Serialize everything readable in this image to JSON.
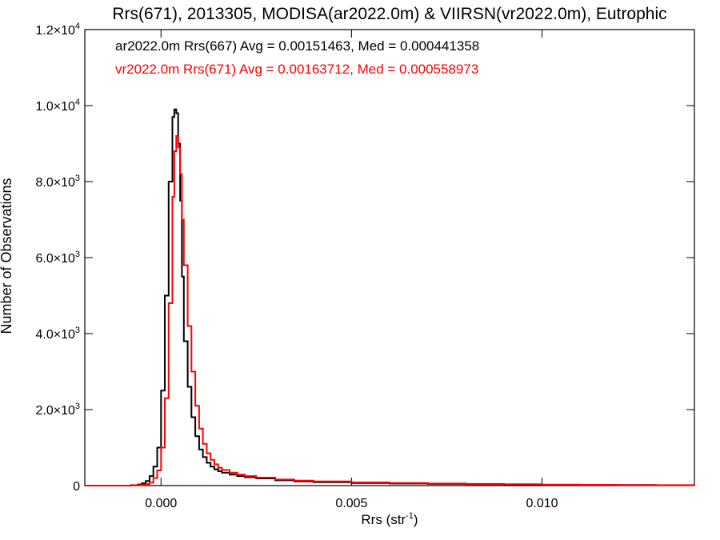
{
  "chart_data": {
    "type": "line",
    "title": "Rrs(671), 2013305, MODISA(ar2022.0m) & VIIRSN(vr2022.0m), Eutrophic",
    "xlabel": {
      "base": "Rrs (str",
      "sup": "-1",
      "tail": ")"
    },
    "ylabel": "Number of Observations",
    "xlim": [
      -0.002,
      0.014
    ],
    "ylim": [
      0,
      12000
    ],
    "x_ticks": [
      {
        "value": 0.0,
        "label": "0.000"
      },
      {
        "value": 0.005,
        "label": "0.005"
      },
      {
        "value": 0.01,
        "label": "0.010"
      }
    ],
    "y_ticks": [
      {
        "value": 0,
        "mant": "0",
        "exp": ""
      },
      {
        "value": 2000,
        "mant": "2.0×10",
        "exp": "3"
      },
      {
        "value": 4000,
        "mant": "4.0×10",
        "exp": "3"
      },
      {
        "value": 6000,
        "mant": "6.0×10",
        "exp": "3"
      },
      {
        "value": 8000,
        "mant": "8.0×10",
        "exp": "3"
      },
      {
        "value": 10000,
        "mant": "1.0×10",
        "exp": "4"
      },
      {
        "value": 12000,
        "mant": "1.2×10",
        "exp": "4"
      }
    ],
    "grid": false,
    "legend_position": "top-left",
    "series": [
      {
        "name": "ar2022.0m Rrs(667) Avg = 0.00151463, Med = 0.000441358",
        "color": "#000000",
        "x": [
          -0.002,
          -0.001,
          -0.0008,
          -0.0006,
          -0.0005,
          -0.0004,
          -0.0003,
          -0.0002,
          -0.0001,
          0.0,
          0.0001,
          0.0002,
          0.0003,
          0.00035,
          0.0004,
          0.00045,
          0.0005,
          0.00055,
          0.0006,
          0.0007,
          0.0008,
          0.0009,
          0.001,
          0.0011,
          0.0012,
          0.0013,
          0.0014,
          0.0015,
          0.0016,
          0.0018,
          0.002,
          0.0022,
          0.0025,
          0.003,
          0.0035,
          0.004,
          0.005,
          0.006,
          0.007,
          0.008,
          0.009,
          0.01,
          0.011,
          0.012,
          0.013,
          0.014
        ],
        "values": [
          0,
          0,
          10,
          30,
          60,
          120,
          250,
          500,
          1000,
          2500,
          5000,
          8000,
          9700,
          9900,
          9800,
          9000,
          7500,
          5500,
          3800,
          2600,
          1800,
          1300,
          950,
          750,
          600,
          500,
          430,
          380,
          340,
          290,
          250,
          220,
          190,
          140,
          110,
          90,
          70,
          55,
          45,
          35,
          28,
          22,
          18,
          14,
          10,
          6
        ]
      },
      {
        "name": "vr2022.0m Rrs(671) Avg = 0.00163712, Med = 0.000558973",
        "color": "#ff0000",
        "x": [
          -0.002,
          -0.001,
          -0.0008,
          -0.0006,
          -0.0005,
          -0.0004,
          -0.0003,
          -0.0002,
          -0.0001,
          0.0,
          0.0001,
          0.0002,
          0.0003,
          0.00035,
          0.0004,
          0.00045,
          0.0005,
          0.00055,
          0.0006,
          0.0007,
          0.0008,
          0.0009,
          0.001,
          0.0011,
          0.0012,
          0.0013,
          0.0014,
          0.0015,
          0.0016,
          0.0018,
          0.002,
          0.0022,
          0.0025,
          0.003,
          0.0035,
          0.004,
          0.005,
          0.006,
          0.007,
          0.008,
          0.009,
          0.01,
          0.011,
          0.012,
          0.013,
          0.014
        ],
        "values": [
          0,
          0,
          5,
          10,
          20,
          40,
          80,
          200,
          400,
          1000,
          2300,
          4800,
          7600,
          8800,
          9200,
          8900,
          8200,
          7000,
          5800,
          4200,
          3000,
          2100,
          1500,
          1100,
          850,
          680,
          560,
          470,
          410,
          340,
          290,
          250,
          210,
          160,
          130,
          110,
          85,
          68,
          55,
          45,
          36,
          28,
          22,
          17,
          12,
          8
        ]
      }
    ]
  }
}
